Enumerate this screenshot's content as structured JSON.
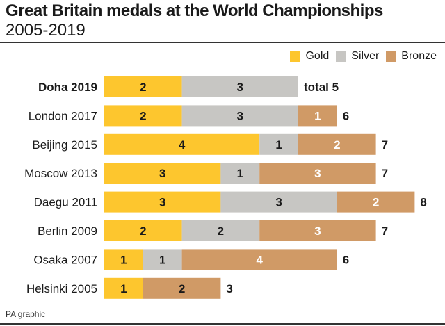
{
  "chart_data": {
    "type": "bar",
    "orientation": "horizontal-stacked",
    "title": "Great Britain medals at the World Championships",
    "subtitle": "2005-2019",
    "categories": [
      "Doha 2019",
      "London 2017",
      "Beijing 2015",
      "Moscow 2013",
      "Daegu 2011",
      "Berlin 2009",
      "Osaka 2007",
      "Helsinki 2005"
    ],
    "series": [
      {
        "name": "Gold",
        "color": "#fdc62e",
        "values": [
          2,
          2,
          4,
          3,
          3,
          2,
          1,
          1
        ]
      },
      {
        "name": "Silver",
        "color": "#c7c6c3",
        "values": [
          3,
          3,
          1,
          1,
          3,
          2,
          1,
          0
        ]
      },
      {
        "name": "Bronze",
        "color": "#d09a66",
        "values": [
          0,
          1,
          2,
          3,
          2,
          3,
          4,
          2
        ]
      }
    ],
    "totals": [
      "total 5",
      "6",
      "7",
      "7",
      "8",
      "7",
      "6",
      "3"
    ],
    "legend_position": "top-right",
    "grid": false
  },
  "source": "PA graphic"
}
